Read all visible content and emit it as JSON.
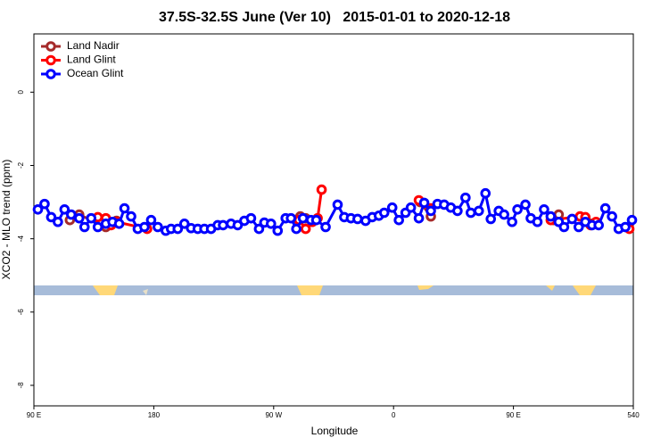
{
  "chart_data": {
    "type": "line",
    "title": "37.5S-32.5S June (Ver 10)   2015-01-01 to 2020-12-18",
    "x_label": "Longitude",
    "y_label": "XCO2 - MLO trend (ppm)",
    "xlim": [
      90,
      540
    ],
    "xticks": [
      {
        "value": 90,
        "label": "90 E"
      },
      180,
      {
        "value": 270,
        "label": "90 W"
      },
      {
        "value": 360,
        "label": "0"
      },
      {
        "value": 450,
        "label": "90 E"
      },
      540
    ],
    "ylim": [
      -8.56,
      1.59
    ],
    "yticks": [
      0,
      -2,
      -4,
      -6,
      -8
    ],
    "legend": "top-left",
    "series": [
      {
        "name": "Land Nadir",
        "color": "#a52a2a",
        "x": [
          117,
          124,
          144,
          152,
          null,
          290,
          294,
          null,
          380,
          388,
          null,
          480,
          484,
          null,
          508
        ],
        "values": [
          -3.49,
          -3.34,
          -3.68,
          -3.51,
          null,
          -3.39,
          -3.44,
          null,
          -3.0,
          -3.39,
          null,
          -3.49,
          -3.34,
          null,
          -3.59
        ]
      },
      {
        "name": "Land Glint",
        "color": "#ff0000",
        "x": [
          138,
          144,
          148,
          152,
          175,
          null,
          289,
          294,
          299,
          303,
          306,
          null,
          379,
          388,
          null,
          478,
          500,
          504,
          508,
          512,
          null,
          537
        ],
        "values": [
          -3.41,
          -3.44,
          -3.63,
          -3.54,
          -3.73,
          null,
          -3.49,
          -3.73,
          -3.54,
          -3.44,
          -2.66,
          null,
          -2.95,
          -3.17,
          null,
          -3.49,
          -3.39,
          -3.41,
          -3.63,
          -3.54,
          null,
          -3.73
        ]
      },
      {
        "name": "Ocean Glint",
        "color": "#0000ff",
        "x": [
          93,
          98,
          103,
          108,
          113,
          118,
          124,
          128,
          133,
          138,
          144,
          149,
          154,
          158,
          163,
          168,
          173,
          178,
          183,
          189,
          193,
          198,
          203,
          208,
          213,
          218,
          223,
          228,
          232,
          238,
          243,
          248,
          253,
          259,
          263,
          268,
          273,
          279,
          283,
          287,
          292,
          298,
          302,
          309,
          318,
          323,
          328,
          333,
          339,
          344,
          349,
          353,
          359,
          364,
          369,
          373,
          379,
          383,
          388,
          393,
          398,
          403,
          408,
          414,
          418,
          424,
          429,
          433,
          439,
          443,
          449,
          453,
          459,
          463,
          468,
          473,
          478,
          484,
          488,
          494,
          499,
          504,
          509,
          514,
          519,
          524,
          529,
          534,
          539
        ],
        "values": [
          -3.2,
          -3.05,
          -3.41,
          -3.54,
          -3.2,
          -3.34,
          -3.44,
          -3.68,
          -3.44,
          -3.68,
          -3.59,
          -3.54,
          -3.59,
          -3.17,
          -3.39,
          -3.73,
          -3.68,
          -3.49,
          -3.68,
          -3.78,
          -3.73,
          -3.73,
          -3.59,
          -3.71,
          -3.73,
          -3.73,
          -3.73,
          -3.63,
          -3.63,
          -3.59,
          -3.63,
          -3.51,
          -3.44,
          -3.73,
          -3.56,
          -3.59,
          -3.78,
          -3.44,
          -3.44,
          -3.73,
          -3.44,
          -3.49,
          -3.49,
          -3.68,
          -3.07,
          -3.41,
          -3.44,
          -3.46,
          -3.51,
          -3.41,
          -3.37,
          -3.29,
          -3.15,
          -3.49,
          -3.29,
          -3.15,
          -3.44,
          -3.02,
          -3.24,
          -3.05,
          -3.07,
          -3.15,
          -3.24,
          -2.88,
          -3.29,
          -3.24,
          -2.76,
          -3.46,
          -3.24,
          -3.34,
          -3.54,
          -3.2,
          -3.07,
          -3.44,
          -3.54,
          -3.2,
          -3.39,
          -3.54,
          -3.68,
          -3.46,
          -3.68,
          -3.54,
          -3.63,
          -3.63,
          -3.17,
          -3.39,
          -3.73,
          -3.68,
          -3.49
        ]
      }
    ]
  }
}
